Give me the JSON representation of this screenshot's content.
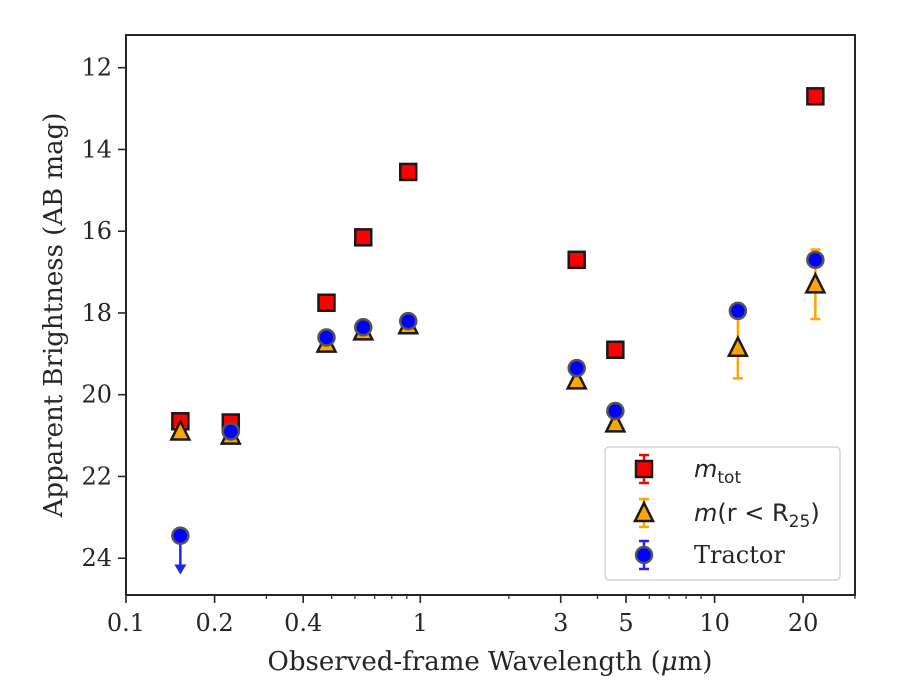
{
  "chart_data": {
    "type": "scatter",
    "title": "",
    "xlabel_main": "Observed-frame Wavelength (",
    "xlabel_unit": "μ",
    "xlabel_tail": "m)",
    "ylabel": "Apparent Brightness (AB mag)",
    "xscale": "log",
    "xlim": [
      0.1,
      30
    ],
    "ylim": [
      24.9,
      11.2
    ],
    "y_inverted": true,
    "xticks": [
      0.1,
      0.2,
      0.4,
      1,
      3,
      5,
      10,
      20
    ],
    "xtick_labels": [
      "0.1",
      "0.2",
      "0.4",
      "1",
      "3",
      "5",
      "10",
      "20"
    ],
    "yticks": [
      12,
      14,
      16,
      18,
      20,
      22,
      24
    ],
    "ytick_labels": [
      "12",
      "14",
      "16",
      "18",
      "20",
      "22",
      "24"
    ],
    "legend_position": "lower-right",
    "series": [
      {
        "name": "m_tot",
        "legend_italic": "m",
        "legend_sub": "tot",
        "marker": "square",
        "color": "#ff0000",
        "edge_color": "#1a1a1a",
        "error_color": "#ff0000",
        "points": [
          {
            "x": 0.153,
            "y": 20.65,
            "err": 0.08
          },
          {
            "x": 0.227,
            "y": 20.68,
            "err": 0.08
          },
          {
            "x": 0.48,
            "y": 17.75,
            "err": 0.05
          },
          {
            "x": 0.64,
            "y": 16.15,
            "err": 0.05
          },
          {
            "x": 0.91,
            "y": 14.55,
            "err": 0.05
          },
          {
            "x": 3.4,
            "y": 16.7,
            "err": 0.05
          },
          {
            "x": 4.6,
            "y": 18.9,
            "err": 0.05
          },
          {
            "x": 22.0,
            "y": 12.7,
            "err": 0.05
          }
        ]
      },
      {
        "name": "m(r < R25)",
        "legend_italic": "m",
        "legend_text": "(r < R",
        "legend_sub": "25",
        "legend_close": ")",
        "marker": "triangle",
        "color": "#ffa500",
        "edge_color": "#1a1a1a",
        "error_color": "#ffa500",
        "points": [
          {
            "x": 0.153,
            "y": 20.9,
            "err": 0.08
          },
          {
            "x": 0.227,
            "y": 21.0,
            "err": 0.08
          },
          {
            "x": 0.48,
            "y": 18.75,
            "err": 0.05
          },
          {
            "x": 0.64,
            "y": 18.45,
            "err": 0.05
          },
          {
            "x": 0.91,
            "y": 18.3,
            "err": 0.05
          },
          {
            "x": 3.4,
            "y": 19.65,
            "err": 0.05
          },
          {
            "x": 4.6,
            "y": 20.7,
            "err": 0.05
          },
          {
            "x": 12.0,
            "y": 18.85,
            "err": 0.75
          },
          {
            "x": 22.0,
            "y": 17.3,
            "err": 0.85
          }
        ]
      },
      {
        "name": "Tractor",
        "legend_text": "Tractor",
        "marker": "circle",
        "color": "#0000ff",
        "edge_color": "#555555",
        "error_color": "#2222ee",
        "points": [
          {
            "x": 0.153,
            "y": 23.45,
            "err": 0,
            "upper_limit": true
          },
          {
            "x": 0.227,
            "y": 20.9,
            "err": 0.06
          },
          {
            "x": 0.48,
            "y": 18.6,
            "err": 0.05
          },
          {
            "x": 0.64,
            "y": 18.35,
            "err": 0.05
          },
          {
            "x": 0.91,
            "y": 18.2,
            "err": 0.05
          },
          {
            "x": 3.4,
            "y": 19.35,
            "err": 0.05
          },
          {
            "x": 4.6,
            "y": 20.4,
            "err": 0.05
          },
          {
            "x": 12.0,
            "y": 17.95,
            "err": 0.05
          },
          {
            "x": 22.0,
            "y": 16.7,
            "err": 0.05
          }
        ]
      }
    ]
  }
}
